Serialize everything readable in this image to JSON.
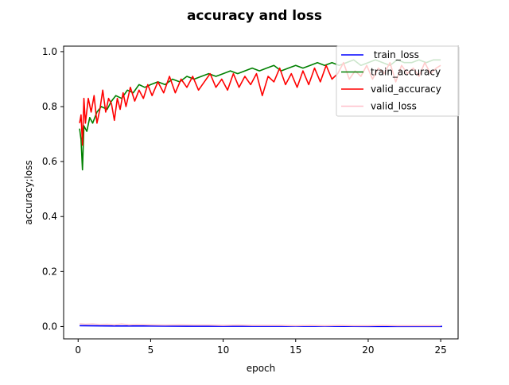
{
  "chart_data": {
    "type": "line",
    "title": "accuracy and loss",
    "xlabel": "epoch",
    "ylabel": "accuracy;loss",
    "xlim": [
      -1.0,
      26.2
    ],
    "ylim": [
      -0.045,
      1.02
    ],
    "x_ticks": [
      0,
      5,
      10,
      15,
      20,
      25
    ],
    "y_ticks": [
      0.0,
      0.2,
      0.4,
      0.6,
      0.8,
      1.0
    ],
    "x_tick_labels": [
      "0",
      "5",
      "10",
      "15",
      "20",
      "25"
    ],
    "y_tick_labels": [
      "0.0",
      "0.2",
      "0.4",
      "0.6",
      "0.8",
      "1.0"
    ],
    "grid": false,
    "legend_position": "top-right",
    "series": [
      {
        "name": " train_loss",
        "color": "#0000ff",
        "x": [
          0.1,
          2.5,
          5,
          7.5,
          10,
          12.5,
          15,
          17.5,
          20,
          22.5,
          25.1
        ],
        "values": [
          0.003,
          0.002,
          0.002,
          0.001,
          0.001,
          0.001,
          0.001,
          0.001,
          0.0005,
          0.0005,
          0.0005
        ]
      },
      {
        "name": "train_accuracy",
        "color": "#008000",
        "x": [
          0.1,
          0.2,
          0.3,
          0.4,
          0.6,
          0.8,
          1.0,
          1.3,
          1.6,
          2.0,
          2.3,
          2.6,
          3.0,
          3.4,
          3.8,
          4.2,
          4.6,
          5.0,
          5.5,
          6.0,
          6.5,
          7.0,
          7.5,
          8.0,
          8.5,
          9.0,
          9.5,
          10.0,
          10.5,
          11.0,
          11.5,
          12.0,
          12.5,
          13.0,
          13.5,
          14.0,
          14.5,
          15.0,
          15.5,
          16.0,
          16.5,
          17.0,
          17.5,
          18.0,
          18.5,
          19.0,
          19.5,
          20.0,
          20.5,
          21.0,
          21.5,
          22.0,
          22.5,
          23.0,
          23.5,
          24.0,
          24.5,
          25.0
        ],
        "values": [
          0.72,
          0.68,
          0.57,
          0.73,
          0.71,
          0.76,
          0.74,
          0.78,
          0.8,
          0.79,
          0.82,
          0.84,
          0.83,
          0.86,
          0.85,
          0.88,
          0.87,
          0.88,
          0.89,
          0.88,
          0.9,
          0.89,
          0.91,
          0.9,
          0.91,
          0.92,
          0.91,
          0.92,
          0.93,
          0.92,
          0.93,
          0.94,
          0.93,
          0.94,
          0.95,
          0.93,
          0.94,
          0.95,
          0.94,
          0.95,
          0.96,
          0.95,
          0.96,
          0.95,
          0.96,
          0.97,
          0.95,
          0.96,
          0.97,
          0.96,
          0.95,
          0.97,
          0.96,
          0.96,
          0.97,
          0.96,
          0.97,
          0.97
        ]
      },
      {
        "name": "valid_accuracy",
        "color": "#ff0000",
        "x": [
          0.1,
          0.2,
          0.3,
          0.4,
          0.5,
          0.7,
          0.9,
          1.1,
          1.3,
          1.5,
          1.7,
          1.9,
          2.1,
          2.3,
          2.5,
          2.7,
          2.9,
          3.1,
          3.3,
          3.6,
          3.9,
          4.2,
          4.5,
          4.8,
          5.1,
          5.5,
          5.9,
          6.3,
          6.7,
          7.1,
          7.5,
          7.9,
          8.3,
          8.7,
          9.1,
          9.5,
          9.9,
          10.3,
          10.7,
          11.1,
          11.5,
          11.9,
          12.3,
          12.7,
          13.1,
          13.5,
          13.9,
          14.3,
          14.7,
          15.1,
          15.5,
          15.9,
          16.3,
          16.7,
          17.1,
          17.5,
          17.9,
          18.3,
          18.7,
          19.1,
          19.5,
          19.9,
          20.3,
          20.7,
          21.1,
          21.5,
          21.9,
          22.3,
          22.7,
          23.1,
          23.5,
          23.9,
          24.3,
          24.7,
          25.0
        ],
        "values": [
          0.74,
          0.77,
          0.66,
          0.83,
          0.74,
          0.83,
          0.78,
          0.84,
          0.74,
          0.79,
          0.86,
          0.78,
          0.83,
          0.81,
          0.75,
          0.83,
          0.79,
          0.85,
          0.8,
          0.87,
          0.82,
          0.86,
          0.83,
          0.88,
          0.84,
          0.89,
          0.85,
          0.91,
          0.85,
          0.9,
          0.87,
          0.91,
          0.86,
          0.89,
          0.92,
          0.87,
          0.9,
          0.86,
          0.92,
          0.87,
          0.91,
          0.88,
          0.92,
          0.84,
          0.91,
          0.89,
          0.94,
          0.88,
          0.92,
          0.87,
          0.93,
          0.88,
          0.94,
          0.89,
          0.95,
          0.9,
          0.92,
          0.96,
          0.9,
          0.93,
          0.91,
          0.95,
          0.9,
          0.94,
          0.92,
          0.96,
          0.89,
          0.95,
          0.92,
          0.94,
          0.91,
          0.96,
          0.92,
          0.94,
          0.95
        ]
      },
      {
        "name": "valid_loss",
        "color": "#ffc0cb",
        "x": [
          0.1,
          0.5,
          1.0,
          1.5,
          2.0,
          2.5,
          3.0,
          3.5,
          4.0,
          5.0,
          6.0,
          7.0,
          8.0,
          9.0,
          10.0,
          11.0,
          12.0,
          13.0,
          14.0,
          15.0,
          16.0,
          17.0,
          18.0,
          19.0,
          20.0,
          21.0,
          22.0,
          23.0,
          24.0,
          25.0
        ],
        "values": [
          0.01,
          0.008,
          0.009,
          0.007,
          0.008,
          0.006,
          0.009,
          0.006,
          0.007,
          0.006,
          0.005,
          0.006,
          0.005,
          0.005,
          0.004,
          0.005,
          0.004,
          0.004,
          0.004,
          0.003,
          0.004,
          0.003,
          0.004,
          0.003,
          0.003,
          0.004,
          0.003,
          0.003,
          0.003,
          0.003
        ]
      }
    ]
  }
}
